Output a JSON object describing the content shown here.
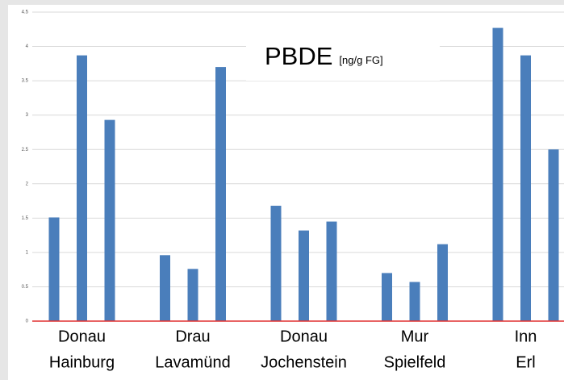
{
  "chart_data": {
    "type": "bar",
    "title": "PBDE",
    "subtitle": "[ng/g FG]",
    "categories": [
      [
        "Donau",
        "Hainburg"
      ],
      [
        "Drau",
        "Lavamünd"
      ],
      [
        "Donau",
        "Jochenstein"
      ],
      [
        "Mur",
        "Spielfeld"
      ],
      [
        "Inn",
        "Erl"
      ]
    ],
    "values": [
      [
        1.51,
        3.87,
        2.93
      ],
      [
        0.96,
        0.76,
        3.7
      ],
      [
        1.68,
        1.32,
        1.45
      ],
      [
        0.7,
        0.57,
        1.12
      ],
      [
        4.27,
        3.87,
        2.5
      ]
    ],
    "color": "#4a7ebb",
    "baseline_color": "#e03030",
    "ylim": [
      0,
      4.5
    ],
    "yticks": [
      0,
      0.5,
      1,
      1.5,
      2,
      2.5,
      3,
      3.5,
      4,
      4.5
    ],
    "grid": true
  }
}
